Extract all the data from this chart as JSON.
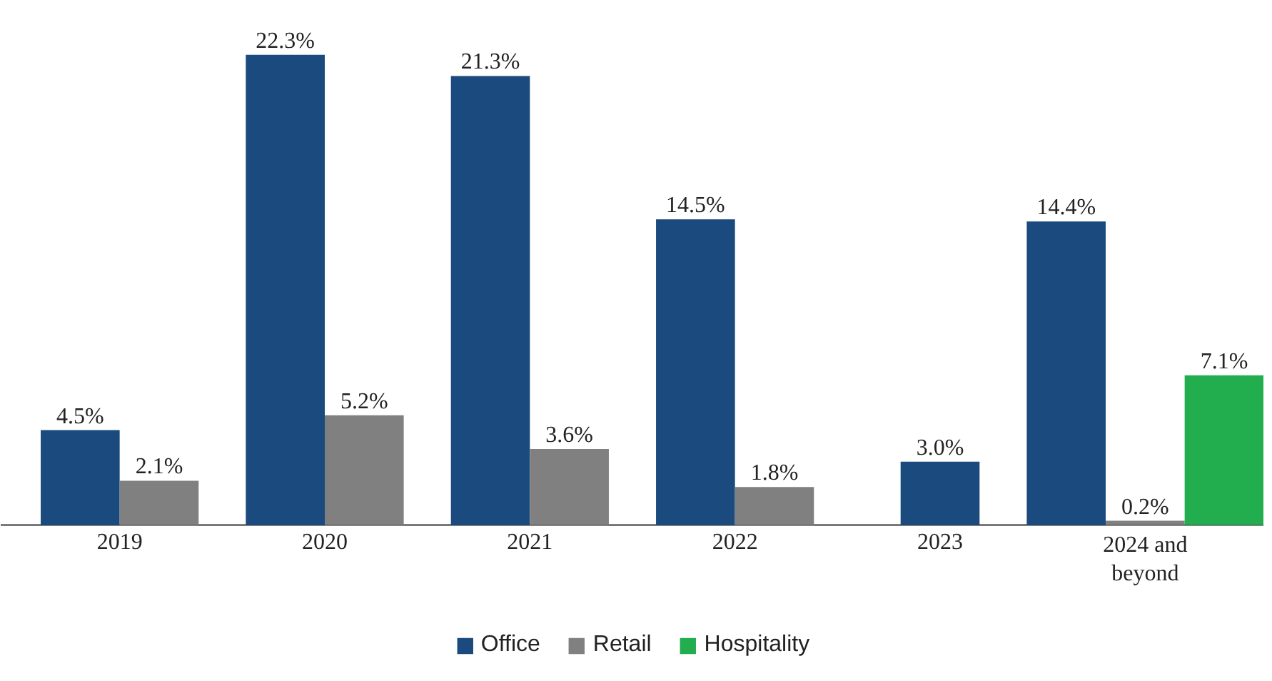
{
  "chart_data": {
    "type": "bar",
    "categories": [
      "2019",
      "2020",
      "2021",
      "2022",
      "2023",
      "2024 and beyond"
    ],
    "series": [
      {
        "name": "Office",
        "color": "#1a4a7e",
        "values": [
          4.5,
          22.3,
          21.3,
          14.5,
          3.0,
          14.4
        ],
        "value_labels": [
          "4.5%",
          "22.3%",
          "21.3%",
          "14.5%",
          "3.0%",
          "14.4%"
        ]
      },
      {
        "name": "Retail",
        "color": "#808080",
        "values": [
          2.1,
          5.2,
          3.6,
          1.8,
          null,
          0.2
        ],
        "value_labels": [
          "2.1%",
          "5.2%",
          "3.6%",
          "1.8%",
          null,
          "0.2%"
        ]
      },
      {
        "name": "Hospitality",
        "color": "#22ad4f",
        "values": [
          null,
          null,
          null,
          null,
          null,
          7.1
        ],
        "value_labels": [
          null,
          null,
          null,
          null,
          null,
          "7.1%"
        ]
      }
    ],
    "legend": "bottom"
  }
}
